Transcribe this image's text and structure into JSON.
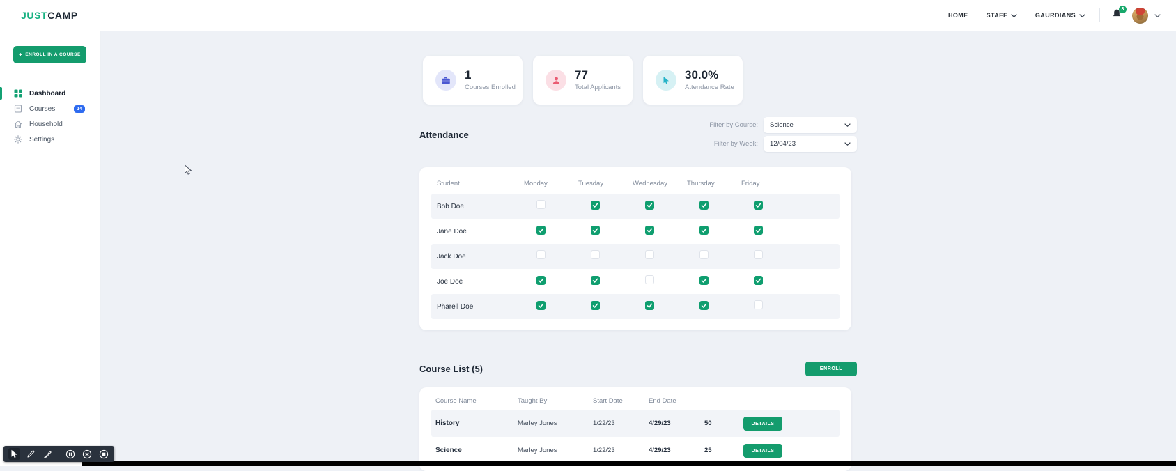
{
  "brand": {
    "name_primary": "JUST",
    "name_secondary": "CAMP"
  },
  "top_nav": {
    "items": [
      {
        "label": "HOME",
        "has_dropdown": false
      },
      {
        "label": "STAFF",
        "has_dropdown": true
      },
      {
        "label": "GAURDIANS",
        "has_dropdown": true
      }
    ],
    "notification_count": "3"
  },
  "sidebar": {
    "enroll_button_label": "ENROLL IN A COURSE",
    "items": [
      {
        "label": "Dashboard",
        "icon": "dashboard-icon",
        "active": true
      },
      {
        "label": "Courses",
        "icon": "courses-icon",
        "badge": "14"
      },
      {
        "label": "Household",
        "icon": "home-icon"
      },
      {
        "label": "Settings",
        "icon": "gear-icon"
      }
    ]
  },
  "stats": [
    {
      "value": "1",
      "label": "Courses Enrolled",
      "icon": "briefcase-icon",
      "icon_color": "#4a57d2",
      "icon_bg": "#e3e6fa"
    },
    {
      "value": "77",
      "label": "Total Applicants",
      "icon": "person-icon",
      "icon_color": "#ea5b72",
      "icon_bg": "#fbdfe5"
    },
    {
      "value": "30.0%",
      "label": "Attendance Rate",
      "icon": "cursor-icon",
      "icon_color": "#23b3c7",
      "icon_bg": "#d6f1f4"
    }
  ],
  "attendance": {
    "title": "Attendance",
    "filters": [
      {
        "label": "Filter by Course:",
        "value": "Science"
      },
      {
        "label": "Filter by Week:",
        "value": "12/04/23"
      }
    ],
    "columns": [
      "Student",
      "Monday",
      "Tuesday",
      "Wednesday",
      "Thursday",
      "Friday"
    ],
    "rows": [
      {
        "student": "Bob Doe",
        "days": [
          false,
          true,
          true,
          true,
          true
        ]
      },
      {
        "student": "Jane Doe",
        "days": [
          true,
          true,
          true,
          true,
          true
        ]
      },
      {
        "student": "Jack Doe",
        "days": [
          false,
          false,
          false,
          false,
          false
        ]
      },
      {
        "student": "Joe Doe",
        "days": [
          true,
          true,
          false,
          true,
          true
        ]
      },
      {
        "student": "Pharell Doe",
        "days": [
          true,
          true,
          true,
          true,
          false
        ]
      }
    ]
  },
  "course_list": {
    "title": "Course List (5)",
    "enroll_button": "ENROLL",
    "columns": [
      "Course Name",
      "Taught By",
      "Start Date",
      "End Date"
    ],
    "rows": [
      {
        "name": "History",
        "taught_by": "Marley Jones",
        "start_date": "1/22/23",
        "end_date": "4/29/23",
        "seats": "50",
        "action": "DETAILS"
      },
      {
        "name": "Science",
        "taught_by": "Marley Jones",
        "start_date": "1/22/23",
        "end_date": "4/29/23",
        "seats": "25",
        "action": "DETAILS"
      }
    ]
  },
  "toolbar": {
    "group1": [
      "cursor",
      "pencil",
      "brush"
    ],
    "group2": [
      "pause",
      "close",
      "stop"
    ]
  },
  "colors": {
    "brand_green": "#149c6d",
    "logo_green": "#16b181",
    "check_green": "#0f9e6f",
    "badge_blue": "#2e6bf0",
    "notification_green": "#17a86b"
  }
}
